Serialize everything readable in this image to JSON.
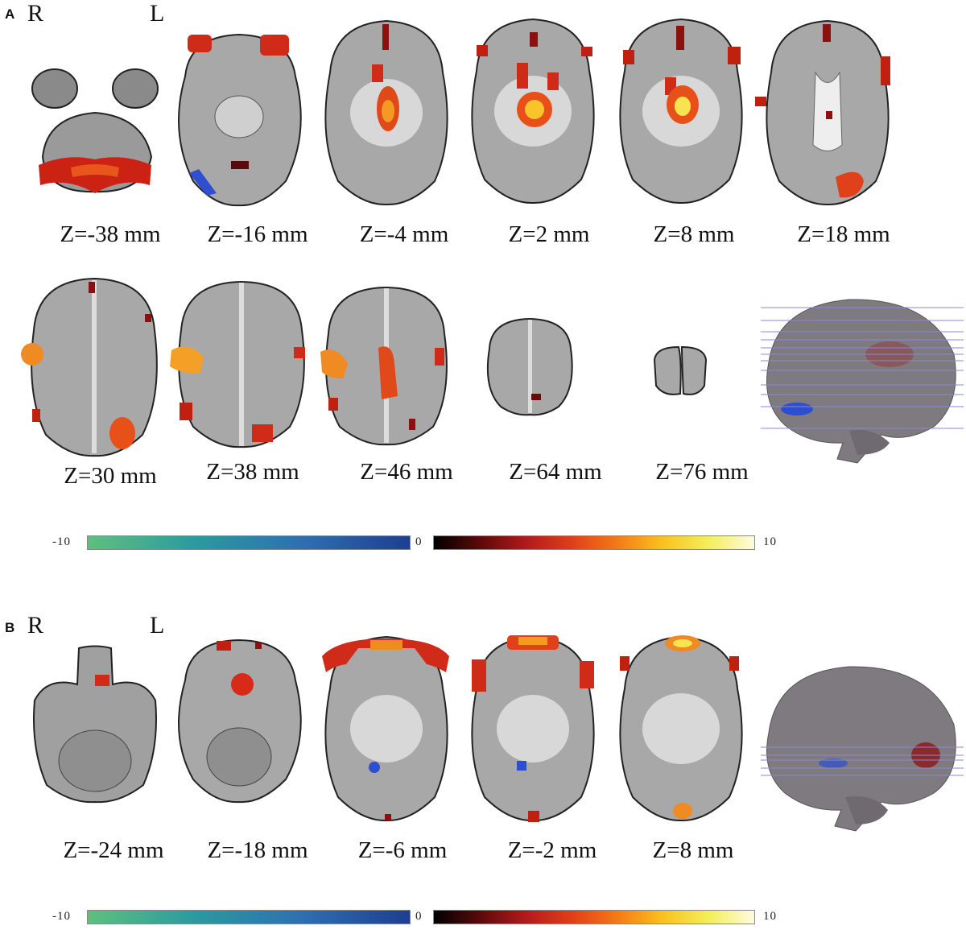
{
  "panel_a": {
    "letter": "A",
    "orient_right": "R",
    "orient_left": "L",
    "row1_labels": [
      "Z=-38 mm",
      "Z=-16 mm",
      "Z=-4 mm",
      "Z=2 mm",
      "Z=8 mm",
      "Z=18 mm"
    ],
    "row2_labels": [
      "Z=30 mm",
      "Z=38 mm",
      "Z=46 mm",
      "Z=64 mm",
      "Z=76 mm"
    ],
    "colorbar": {
      "min": "-10",
      "zero": "0",
      "max": "10"
    }
  },
  "panel_b": {
    "letter": "B",
    "orient_right": "R",
    "orient_left": "L",
    "row1_labels": [
      "Z=-24 mm",
      "Z=-18 mm",
      "Z=-6 mm",
      "Z=-2 mm",
      "Z=8 mm"
    ],
    "colorbar": {
      "min": "-10",
      "zero": "0",
      "max": "10"
    }
  },
  "colors": {
    "activation_positive": "#d42a1a",
    "activation_hot": "#f6e23a",
    "activation_negative": "#2b4fd0",
    "brain_gray": "#9a9a9a"
  }
}
